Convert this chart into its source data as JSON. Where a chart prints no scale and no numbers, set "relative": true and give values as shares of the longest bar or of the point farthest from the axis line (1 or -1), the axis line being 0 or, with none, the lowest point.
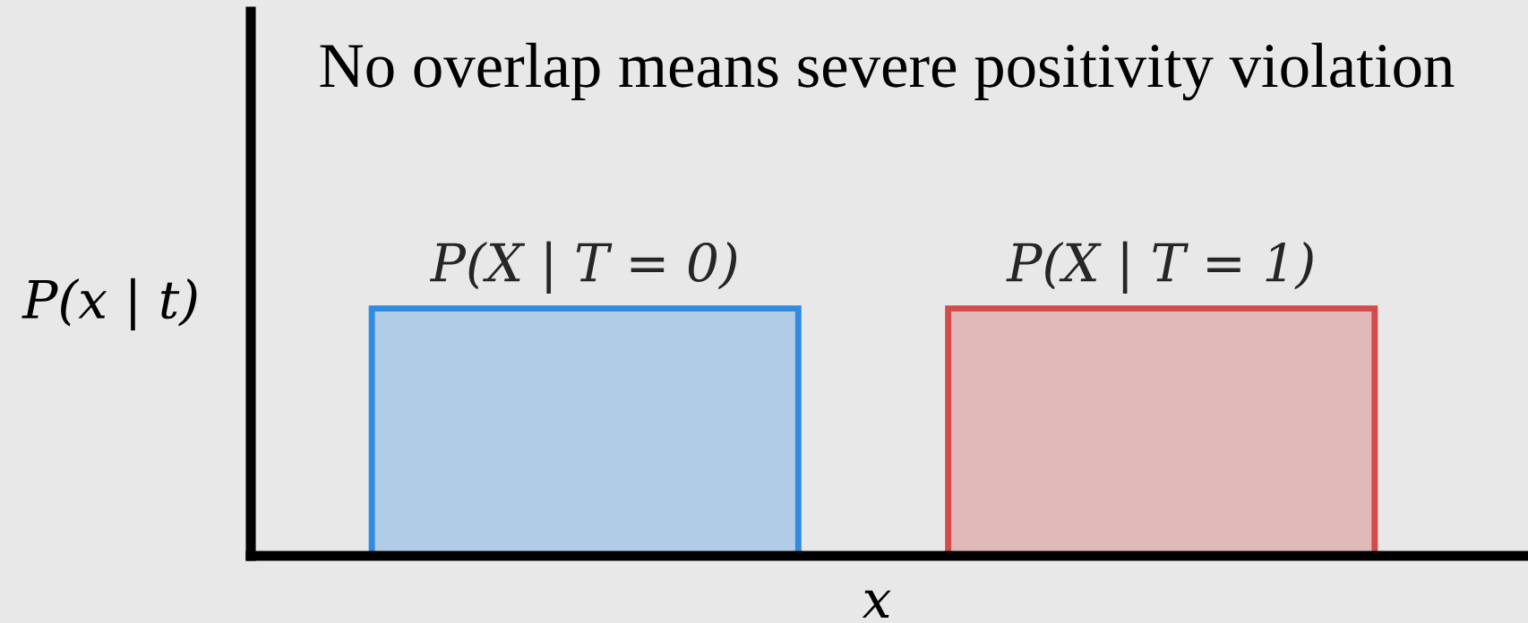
{
  "chart_data": {
    "type": "bar",
    "relative": true,
    "title": "No overlap means severe positivity violation",
    "xlabel": "x",
    "ylabel": "P(x | t)",
    "categories": [
      "P(X | T = 0)",
      "P(X | T = 1)"
    ],
    "values": [
      1,
      1
    ],
    "colors": [
      "#b1cce6",
      "#e2b9b9"
    ]
  }
}
